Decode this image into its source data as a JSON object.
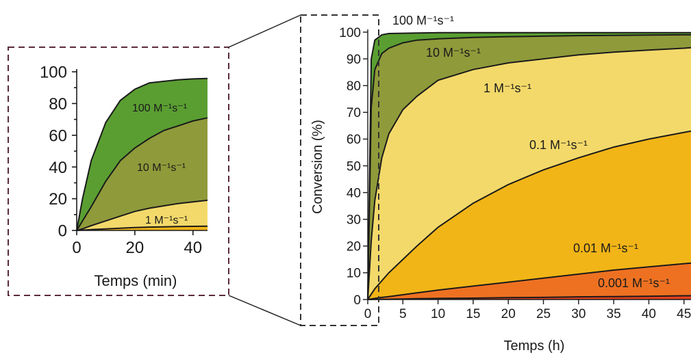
{
  "chart_data": [
    {
      "type": "area",
      "panel": "inset",
      "xlabel": "Temps (min)",
      "ylabel": "",
      "xlim": [
        0,
        45
      ],
      "ylim": [
        0,
        100
      ],
      "xticks": [
        "0",
        "20",
        "40"
      ],
      "yticks": [
        "0",
        "20",
        "40",
        "60",
        "80",
        "100"
      ],
      "x": [
        0,
        2,
        5,
        10,
        15,
        20,
        25,
        30,
        35,
        40,
        45
      ],
      "series": [
        {
          "name": "100 M⁻¹s⁻¹",
          "label": "100 M⁻¹s⁻¹",
          "color": "#5a9e32",
          "values": [
            0,
            20,
            44,
            68,
            82,
            89,
            93,
            94,
            95,
            95.5,
            95.8
          ]
        },
        {
          "name": "10 M⁻¹s⁻¹",
          "label": "10 M⁻¹s⁻¹",
          "color": "#8f9a3a",
          "values": [
            0,
            6,
            15,
            31,
            44,
            52,
            58,
            63,
            66,
            69,
            71
          ]
        },
        {
          "name": "1 M⁻¹s⁻¹",
          "label": "1 M⁻¹s⁻¹",
          "color": "#f3d96a",
          "values": [
            0,
            1,
            3,
            6,
            9,
            12,
            14,
            15.5,
            17,
            18,
            19
          ]
        },
        {
          "name": "0.1 M⁻¹s⁻¹",
          "label": "",
          "color": "#f2b517",
          "values": [
            0,
            0.2,
            0.5,
            1,
            1.4,
            1.8,
            2.1,
            2.3,
            2.5,
            2.6,
            2.7
          ]
        }
      ]
    },
    {
      "type": "area",
      "panel": "main",
      "xlabel": "Temps (h)",
      "ylabel": "Conversion (%)",
      "xlim": [
        0,
        46
      ],
      "ylim": [
        0,
        100
      ],
      "xticks": [
        "0",
        "5",
        "10",
        "15",
        "20",
        "25",
        "30",
        "35",
        "40",
        "45"
      ],
      "yticks": [
        "0",
        "10",
        "20",
        "30",
        "40",
        "50",
        "60",
        "70",
        "80",
        "90",
        "100"
      ],
      "x": [
        0,
        0.5,
        1,
        2,
        3,
        5,
        7,
        10,
        15,
        20,
        25,
        30,
        35,
        40,
        45,
        46
      ],
      "series": [
        {
          "name": "100 M⁻¹s⁻¹",
          "label": "100 M⁻¹s⁻¹",
          "color": "#5a9e32",
          "values": [
            0,
            90,
            97,
            99,
            99.5,
            99.6,
            99.7,
            99.8,
            99.8,
            99.8,
            99.8,
            99.8,
            99.8,
            99.8,
            99.8,
            99.8
          ]
        },
        {
          "name": "10 M⁻¹s⁻¹",
          "label": "10 M⁻¹s⁻¹",
          "color": "#8f9a3a",
          "values": [
            0,
            72,
            86,
            92,
            94,
            96,
            97,
            97.5,
            98,
            98.3,
            98.5,
            98.7,
            98.8,
            98.9,
            99,
            99
          ]
        },
        {
          "name": "1 M⁻¹s⁻¹",
          "label": "1 M⁻¹s⁻¹",
          "color": "#f3d96a",
          "values": [
            0,
            22,
            37,
            53,
            62,
            71,
            76,
            82,
            86,
            88.5,
            90,
            91.5,
            92.5,
            93.3,
            94,
            94.2
          ]
        },
        {
          "name": "0.1 M⁻¹s⁻¹",
          "label": "0.1 M⁻¹s⁻¹",
          "color": "#f2b517",
          "values": [
            0,
            2,
            4,
            7,
            10,
            15,
            20,
            27,
            36,
            43,
            48.5,
            53,
            57,
            60,
            62.5,
            63
          ]
        },
        {
          "name": "0.01 M⁻¹s⁻¹",
          "label": "0.01 M⁻¹s⁻¹",
          "color": "#ee7122",
          "values": [
            0,
            0.2,
            0.4,
            0.8,
            1.1,
            1.8,
            2.5,
            3.5,
            5,
            6.5,
            8,
            9.5,
            11,
            12.2,
            13.4,
            13.6
          ]
        },
        {
          "name": "0.001 M⁻¹s⁻¹",
          "label": "0.001 M⁻¹s⁻¹",
          "color": "#e3401f",
          "values": [
            0,
            0,
            0.05,
            0.1,
            0.1,
            0.2,
            0.3,
            0.4,
            0.5,
            0.7,
            0.8,
            1.0,
            1.1,
            1.2,
            1.4,
            1.4
          ]
        }
      ]
    }
  ]
}
